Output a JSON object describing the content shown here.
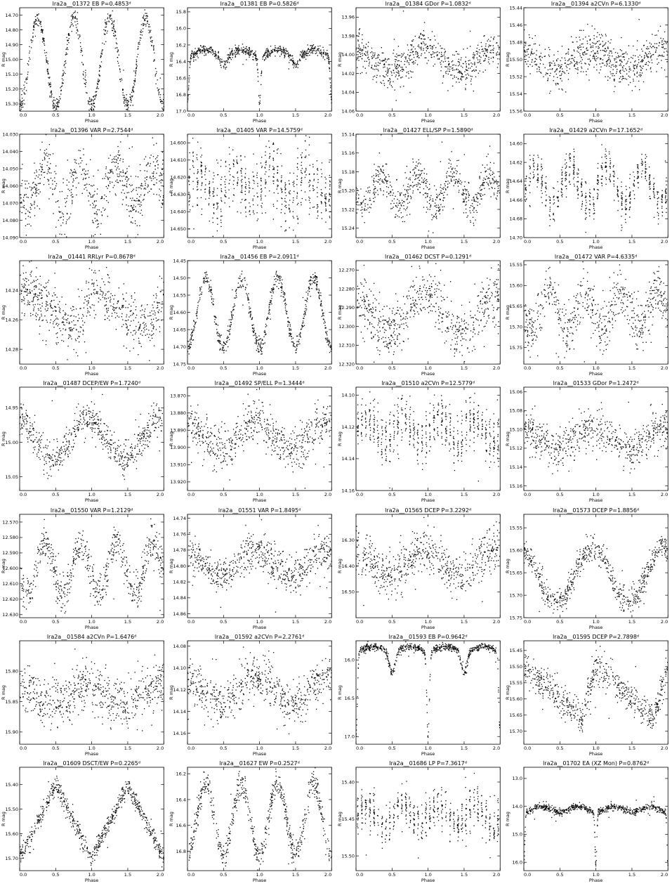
{
  "axis_labels": {
    "x": "Phase",
    "y": "R mag"
  },
  "chart_data": [
    {
      "type": "scatter",
      "title": "lra2a__01372   EB   P=0.4853ᵈ",
      "xlim": [
        0,
        2
      ],
      "ylim": [
        14.65,
        15.35
      ],
      "yticks": [
        14.7,
        14.8,
        14.9,
        15.0,
        15.1,
        15.2,
        15.3
      ],
      "xticks": [
        0,
        0.5,
        1.0,
        1.5,
        2.0
      ],
      "pattern": "ew",
      "base": 15.02,
      "amp": 0.3,
      "sd": 0.03,
      "n": 700
    },
    {
      "type": "scatter",
      "title": "lra2a__01381   EB   P=0.5826ᵈ",
      "xlim": [
        0,
        2
      ],
      "ylim": [
        15.75,
        17.0
      ],
      "yticks": [
        15.8,
        16.0,
        16.2,
        16.4,
        16.6,
        16.8,
        17.0
      ],
      "xticks": [
        0,
        0.5,
        1.0,
        1.5,
        2.0
      ],
      "pattern": "eb",
      "base": 16.3,
      "amp": 0.15,
      "depth1": 0.55,
      "depth2": 0.1,
      "sd": 0.03,
      "n": 700
    },
    {
      "type": "scatter",
      "title": "lra2a__01384   GDor   P=1.0832ᵈ",
      "xlim": [
        0,
        2
      ],
      "ylim": [
        13.95,
        14.06
      ],
      "yticks": [
        13.96,
        13.98,
        14.0,
        14.02,
        14.04,
        14.06
      ],
      "xticks": [
        0,
        0.5,
        1.0,
        1.5,
        2.0
      ],
      "pattern": "sin1",
      "base": 14.005,
      "amp": 0.012,
      "sd": 0.009,
      "n": 650
    },
    {
      "type": "scatter",
      "title": "lra2a__01394   a2CVn   P=6.1330ᵈ",
      "xlim": [
        0,
        2
      ],
      "ylim": [
        15.44,
        15.56
      ],
      "yticks": [
        15.44,
        15.46,
        15.48,
        15.5,
        15.52,
        15.54,
        15.56
      ],
      "xticks": [
        0,
        0.5,
        1.0,
        1.5,
        2.0
      ],
      "pattern": "sin1",
      "base": 15.5,
      "amp": 0.012,
      "sd": 0.012,
      "n": 650
    },
    {
      "type": "scatter",
      "title": "lra2a__01396   VAR   P=2.7544ᵈ",
      "xlim": [
        0,
        2
      ],
      "ylim": [
        14.03,
        14.09
      ],
      "yticks": [
        14.03,
        14.04,
        14.05,
        14.06,
        14.07,
        14.08,
        14.09
      ],
      "xticks": [
        0,
        0.5,
        1.0,
        1.5,
        2.0
      ],
      "pattern": "sin2",
      "base": 14.06,
      "amp": 0.012,
      "sd": 0.008,
      "n": 650
    },
    {
      "type": "scatter",
      "title": "lra2a__01405   VAR   P=14.5759ᵈ",
      "xlim": [
        0,
        2
      ],
      "ylim": [
        14.595,
        14.655
      ],
      "yticks": [
        14.6,
        14.61,
        14.62,
        14.63,
        14.64,
        14.65
      ],
      "xticks": [
        0,
        0.5,
        1.0,
        1.5,
        2.0
      ],
      "pattern": "cluster",
      "base": 14.625,
      "amp": 0.008,
      "sd": 0.01,
      "n": 650
    },
    {
      "type": "scatter",
      "title": "lra2a__01427   ELL/SP   P=1.5890ᵈ",
      "xlim": [
        0,
        2
      ],
      "ylim": [
        15.14,
        15.25
      ],
      "yticks": [
        15.14,
        15.16,
        15.18,
        15.2,
        15.22,
        15.24
      ],
      "xticks": [
        0,
        0.5,
        1.0,
        1.5,
        2.0
      ],
      "pattern": "sin2",
      "base": 15.2,
      "amp": 0.016,
      "sd": 0.01,
      "n": 650
    },
    {
      "type": "scatter",
      "title": "lra2a__01429   a2CVn   P=17.1652ᵈ",
      "xlim": [
        0,
        2
      ],
      "ylim": [
        14.59,
        14.7
      ],
      "yticks": [
        14.6,
        14.62,
        14.64,
        14.66,
        14.68,
        14.7
      ],
      "xticks": [
        0,
        0.5,
        1.0,
        1.5,
        2.0
      ],
      "pattern": "cluster",
      "base": 14.645,
      "amp": 0.02,
      "sd": 0.01,
      "n": 650
    },
    {
      "type": "scatter",
      "title": "lra2a__01441   RRLyr   P=0.8678ᵈ",
      "xlim": [
        0,
        2
      ],
      "ylim": [
        14.22,
        14.29
      ],
      "yticks": [
        14.24,
        14.26,
        14.28
      ],
      "xticks": [
        0,
        0.5,
        1.0,
        1.5,
        2.0
      ],
      "pattern": "saw",
      "base": 14.253,
      "amp": 0.015,
      "sd": 0.009,
      "n": 650
    },
    {
      "type": "scatter",
      "title": "lra2a__01456   EB   P=2.0911ᵈ",
      "xlim": [
        0,
        2
      ],
      "ylim": [
        14.45,
        14.75
      ],
      "yticks": [
        14.45,
        14.5,
        14.55,
        14.6,
        14.65,
        14.7,
        14.75
      ],
      "xticks": [
        0,
        0.5,
        1.0,
        1.5,
        2.0
      ],
      "pattern": "ew",
      "base": 14.6,
      "amp": 0.1,
      "sd": 0.012,
      "n": 700
    },
    {
      "type": "scatter",
      "title": "lra2a__01462   DCST   P=0.1291ᵈ",
      "xlim": [
        0,
        2
      ],
      "ylim": [
        12.265,
        12.32
      ],
      "yticks": [
        12.27,
        12.28,
        12.29,
        12.3,
        12.31,
        12.32
      ],
      "xticks": [
        0,
        0.5,
        1.0,
        1.5,
        2.0
      ],
      "pattern": "sin1",
      "base": 12.293,
      "amp": 0.01,
      "sd": 0.007,
      "n": 650
    },
    {
      "type": "scatter",
      "title": "lra2a__01472   VAR   P=4.6335ᵈ",
      "xlim": [
        0,
        2
      ],
      "ylim": [
        15.54,
        15.79
      ],
      "yticks": [
        15.55,
        15.6,
        15.65,
        15.7,
        15.75
      ],
      "xticks": [
        0,
        0.5,
        1.0,
        1.5,
        2.0
      ],
      "pattern": "sin2",
      "base": 15.66,
      "amp": 0.045,
      "sd": 0.03,
      "n": 650
    },
    {
      "type": "scatter",
      "title": "lra2a__01487   DCEP/EW   P=1.7240ᵈ",
      "xlim": [
        0,
        2
      ],
      "ylim": [
        14.92,
        15.07
      ],
      "yticks": [
        14.95,
        15.0,
        15.05
      ],
      "xticks": [
        0,
        0.5,
        1.0,
        1.5,
        2.0
      ],
      "pattern": "sin1",
      "base": 14.995,
      "amp": 0.028,
      "sd": 0.012,
      "n": 650
    },
    {
      "type": "scatter",
      "title": "lra2a__01492   SP/ELL   P=1.3444ᵈ",
      "xlim": [
        0,
        2
      ],
      "ylim": [
        13.865,
        13.925
      ],
      "yticks": [
        13.87,
        13.88,
        13.89,
        13.9,
        13.91,
        13.92
      ],
      "xticks": [
        0,
        0.5,
        1.0,
        1.5,
        2.0
      ],
      "pattern": "sin1",
      "base": 13.893,
      "amp": 0.008,
      "sd": 0.006,
      "n": 650
    },
    {
      "type": "scatter",
      "title": "lra2a__01510   a2CVn   P=12.5779ᵈ",
      "xlim": [
        0,
        2
      ],
      "ylim": [
        14.095,
        14.16
      ],
      "yticks": [
        14.1,
        14.12,
        14.14,
        14.16
      ],
      "xticks": [
        0,
        0.5,
        1.0,
        1.5,
        2.0
      ],
      "pattern": "cluster",
      "base": 14.122,
      "amp": 0.008,
      "sd": 0.008,
      "n": 650
    },
    {
      "type": "scatter",
      "title": "lra2a__01533   GDor   P=1.2472ᵈ",
      "xlim": [
        0,
        2
      ],
      "ylim": [
        15.055,
        15.165
      ],
      "yticks": [
        15.06,
        15.08,
        15.1,
        15.12,
        15.14,
        15.16
      ],
      "xticks": [
        0,
        0.5,
        1.0,
        1.5,
        2.0
      ],
      "pattern": "sin1",
      "base": 15.11,
      "amp": 0.012,
      "sd": 0.01,
      "n": 650
    },
    {
      "type": "scatter",
      "title": "lra2a__01550   VAR   P=1.2129ᵈ",
      "xlim": [
        0,
        2
      ],
      "ylim": [
        12.565,
        12.632
      ],
      "yticks": [
        12.57,
        12.58,
        12.59,
        12.6,
        12.61,
        12.62,
        12.63
      ],
      "xticks": [
        0,
        0.5,
        1.0,
        1.5,
        2.0
      ],
      "pattern": "sin2",
      "base": 12.6,
      "amp": 0.016,
      "sd": 0.006,
      "n": 650
    },
    {
      "type": "scatter",
      "title": "lra2a__01551   VAR   P=1.8495ᵈ",
      "xlim": [
        0,
        2
      ],
      "ylim": [
        14.735,
        14.865
      ],
      "yticks": [
        14.74,
        14.76,
        14.78,
        14.8,
        14.82,
        14.84,
        14.86
      ],
      "xticks": [
        0,
        0.5,
        1.0,
        1.5,
        2.0
      ],
      "pattern": "sin1",
      "base": 14.795,
      "amp": 0.015,
      "sd": 0.012,
      "n": 650
    },
    {
      "type": "scatter",
      "title": "lra2a__01565   DCEP   P=3.2292ᵈ",
      "xlim": [
        0,
        2
      ],
      "ylim": [
        16.2,
        16.6
      ],
      "yticks": [
        16.3,
        16.4,
        16.5
      ],
      "xticks": [
        0,
        0.5,
        1.0,
        1.5,
        2.0
      ],
      "pattern": "sin1",
      "base": 16.39,
      "amp": 0.05,
      "sd": 0.04,
      "n": 650
    },
    {
      "type": "scatter",
      "title": "lra2a__01573   DCEP   P=1.8856ᵈ",
      "xlim": [
        0,
        2
      ],
      "ylim": [
        15.52,
        15.75
      ],
      "yticks": [
        15.55,
        15.6,
        15.65,
        15.7,
        15.75
      ],
      "xticks": [
        0,
        0.5,
        1.0,
        1.5,
        2.0
      ],
      "pattern": "sin1",
      "base": 15.655,
      "amp": 0.06,
      "sd": 0.015,
      "n": 650
    },
    {
      "type": "scatter",
      "title": "lra2a__01584   a2CVn   P=1.6476ᵈ",
      "xlim": [
        0,
        2
      ],
      "ylim": [
        15.75,
        15.92
      ],
      "yticks": [
        15.8,
        15.85,
        15.9
      ],
      "xticks": [
        0,
        0.5,
        1.0,
        1.5,
        2.0
      ],
      "pattern": "sin1",
      "base": 15.84,
      "amp": 0.015,
      "sd": 0.02,
      "n": 650
    },
    {
      "type": "scatter",
      "title": "lra2a__01592   a2CVn   P=2.2761ᵈ",
      "xlim": [
        0,
        2
      ],
      "ylim": [
        14.075,
        14.17
      ],
      "yticks": [
        14.08,
        14.1,
        14.12,
        14.14,
        14.16
      ],
      "xticks": [
        0,
        0.5,
        1.0,
        1.5,
        2.0
      ],
      "pattern": "sin1",
      "base": 14.12,
      "amp": 0.012,
      "sd": 0.01,
      "n": 650
    },
    {
      "type": "scatter",
      "title": "lra2a__01593   EB   P=0.9642ᵈ",
      "xlim": [
        0,
        2
      ],
      "ylim": [
        15.75,
        17.1
      ],
      "yticks": [
        16.0,
        16.5,
        17.0
      ],
      "xticks": [
        0,
        0.5,
        1.0,
        1.5,
        2.0
      ],
      "pattern": "eb",
      "base": 15.85,
      "amp": 0.08,
      "depth1": 1.1,
      "depth2": 0.3,
      "sd": 0.025,
      "n": 700
    },
    {
      "type": "scatter",
      "title": "lra2a__01595   DCEP   P=2.7898ᵈ",
      "xlim": [
        0,
        2
      ],
      "ylim": [
        15.42,
        15.74
      ],
      "yticks": [
        15.45,
        15.5,
        15.55,
        15.6,
        15.65,
        15.7
      ],
      "xticks": [
        0,
        0.5,
        1.0,
        1.5,
        2.0
      ],
      "pattern": "saw",
      "base": 15.58,
      "amp": 0.08,
      "sd": 0.025,
      "n": 650
    },
    {
      "type": "scatter",
      "title": "lra2a__01609   DSCT/EW   P=0.2265ᵈ",
      "xlim": [
        0,
        2
      ],
      "ylim": [
        15.33,
        15.75
      ],
      "yticks": [
        15.4,
        15.5,
        15.6,
        15.7
      ],
      "xticks": [
        0,
        0.5,
        1.0,
        1.5,
        2.0
      ],
      "pattern": "vshape",
      "base": 15.4,
      "amp": 0.3,
      "sd": 0.018,
      "n": 700
    },
    {
      "type": "scatter",
      "title": "lra2a__01627   EW   P=0.2527ᵈ",
      "xlim": [
        0,
        2
      ],
      "ylim": [
        16.15,
        16.95
      ],
      "yticks": [
        16.2,
        16.4,
        16.6,
        16.8
      ],
      "xticks": [
        0,
        0.5,
        1.0,
        1.5,
        2.0
      ],
      "pattern": "ew",
      "base": 16.55,
      "amp": 0.28,
      "sd": 0.05,
      "n": 700
    },
    {
      "type": "scatter",
      "title": "lra2a__01686   LP   P=7.3617ᵈ",
      "xlim": [
        0,
        2
      ],
      "ylim": [
        15.38,
        15.52
      ],
      "yticks": [
        15.4,
        15.45,
        15.5
      ],
      "xticks": [
        0,
        0.5,
        1.0,
        1.5,
        2.0
      ],
      "pattern": "cluster",
      "base": 15.445,
      "amp": 0.015,
      "sd": 0.014,
      "n": 600
    },
    {
      "type": "scatter",
      "title": "lra2a__01702   EA (XZ Mon)   P=0.8762ᵈ",
      "xlim": [
        0,
        2
      ],
      "ylim": [
        12.6,
        16.3
      ],
      "yticks": [
        13,
        14,
        15,
        16
      ],
      "xticks": [
        0,
        0.5,
        1.0,
        1.5,
        2.0
      ],
      "pattern": "ea",
      "base": 14.1,
      "amp": 0.1,
      "depth1": 1.9,
      "sd": 0.06,
      "n": 700
    }
  ]
}
